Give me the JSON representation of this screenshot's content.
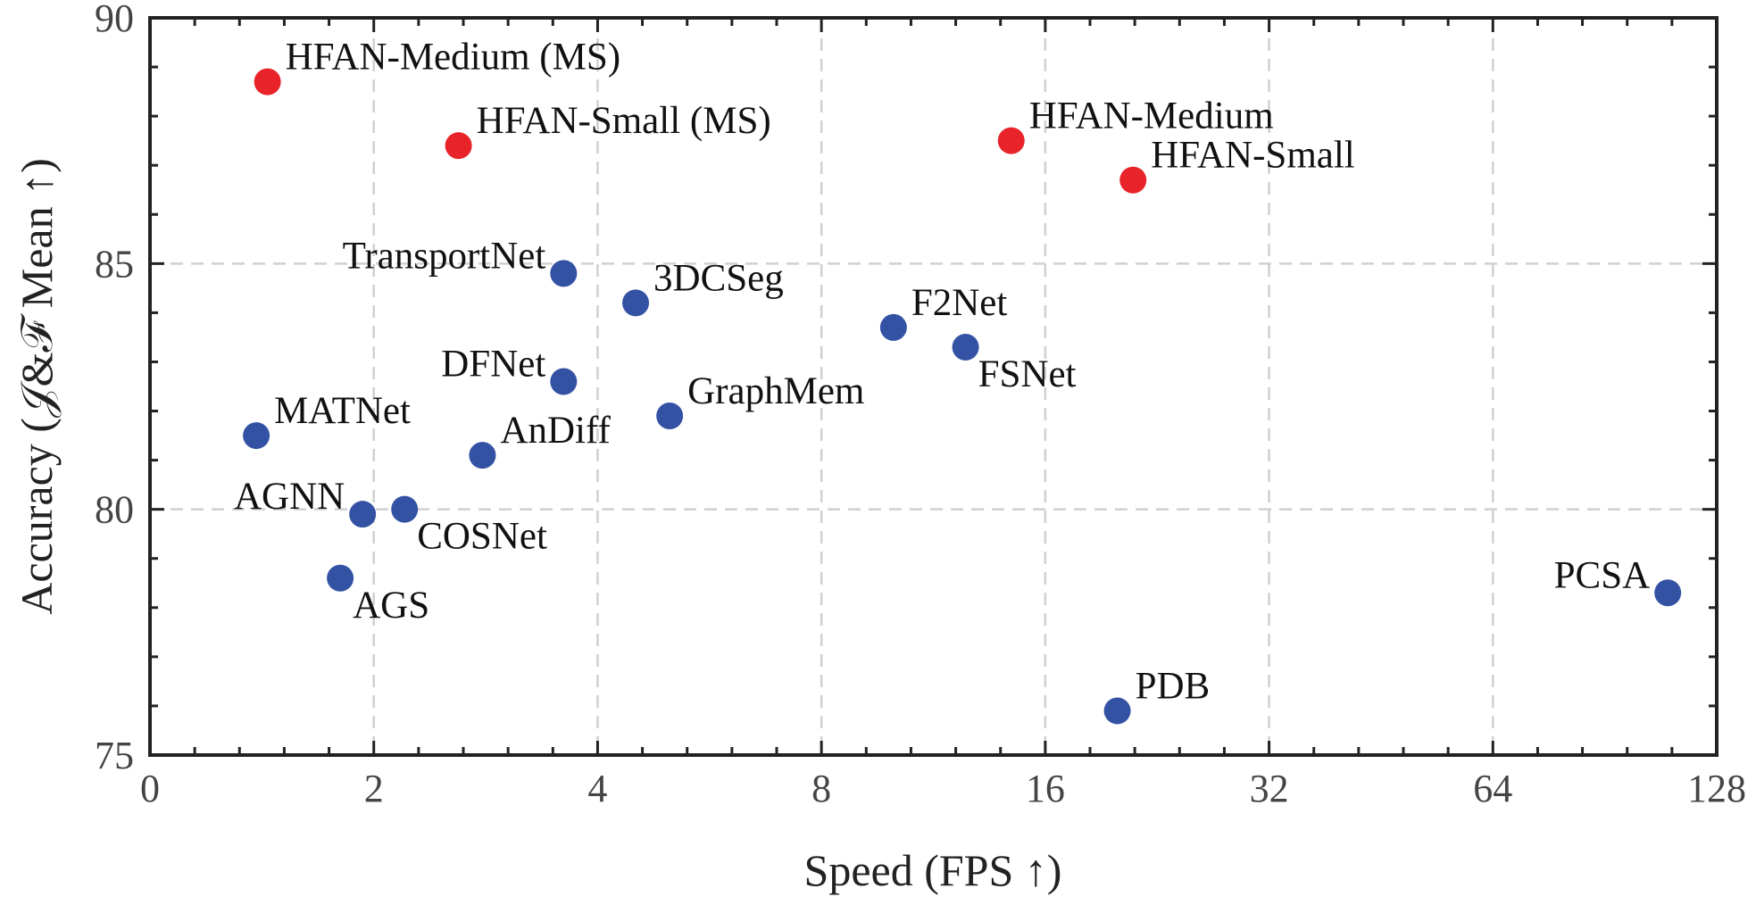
{
  "chart_data": {
    "type": "scatter",
    "xlabel": "Speed (FPS ↑)",
    "ylabel": "Accuracy (𝒥&ℱ Mean ↑)",
    "x_scale": "log2",
    "xlim": [
      0,
      128
    ],
    "ylim": [
      75,
      90
    ],
    "x_ticks": [
      0,
      2,
      4,
      8,
      16,
      32,
      64,
      128
    ],
    "x_tick_labels": [
      "0",
      "2",
      "4",
      "8",
      "16",
      "32",
      "64",
      "128"
    ],
    "y_ticks": [
      75,
      80,
      85,
      90
    ],
    "y_tick_labels": [
      "75",
      "80",
      "85",
      "90"
    ],
    "grid": true,
    "colors": {
      "ours": "#e8232a",
      "others": "#3452a4"
    },
    "points": [
      {
        "name": "HFAN-Medium (MS)",
        "x": 1.05,
        "y": 88.7,
        "group": "ours",
        "label_pos": "right"
      },
      {
        "name": "HFAN-Small (MS)",
        "x": 2.6,
        "y": 87.4,
        "group": "ours",
        "label_pos": "right"
      },
      {
        "name": "HFAN-Medium",
        "x": 14.4,
        "y": 87.5,
        "group": "ours",
        "label_pos": "right"
      },
      {
        "name": "HFAN-Small",
        "x": 21.0,
        "y": 86.7,
        "group": "ours",
        "label_pos": "right"
      },
      {
        "name": "TransportNet",
        "x": 3.6,
        "y": 84.8,
        "group": "others",
        "label_pos": "left"
      },
      {
        "name": "3DCSeg",
        "x": 4.5,
        "y": 84.2,
        "group": "others",
        "label_pos": "right"
      },
      {
        "name": "F2Net",
        "x": 10.0,
        "y": 83.7,
        "group": "others",
        "label_pos": "right"
      },
      {
        "name": "FSNet",
        "x": 12.5,
        "y": 83.3,
        "group": "others",
        "label_pos": "below-right"
      },
      {
        "name": "DFNet",
        "x": 3.6,
        "y": 82.6,
        "group": "others",
        "label_pos": "left"
      },
      {
        "name": "GraphMem",
        "x": 5.0,
        "y": 81.9,
        "group": "others",
        "label_pos": "right"
      },
      {
        "name": "MATNet",
        "x": 0.95,
        "y": 81.5,
        "group": "others",
        "label_pos": "right"
      },
      {
        "name": "AnDiff",
        "x": 2.8,
        "y": 81.1,
        "group": "others",
        "label_pos": "right"
      },
      {
        "name": "AGNN",
        "x": 1.9,
        "y": 79.9,
        "group": "others",
        "label_pos": "left"
      },
      {
        "name": "COSNet",
        "x": 2.2,
        "y": 80.0,
        "group": "others",
        "label_pos": "below-right"
      },
      {
        "name": "AGS",
        "x": 1.7,
        "y": 78.6,
        "group": "others",
        "label_pos": "below-right"
      },
      {
        "name": "PCSA",
        "x": 110,
        "y": 78.3,
        "group": "others",
        "label_pos": "left"
      },
      {
        "name": "PDB",
        "x": 20.0,
        "y": 75.9,
        "group": "others",
        "label_pos": "right"
      }
    ]
  }
}
